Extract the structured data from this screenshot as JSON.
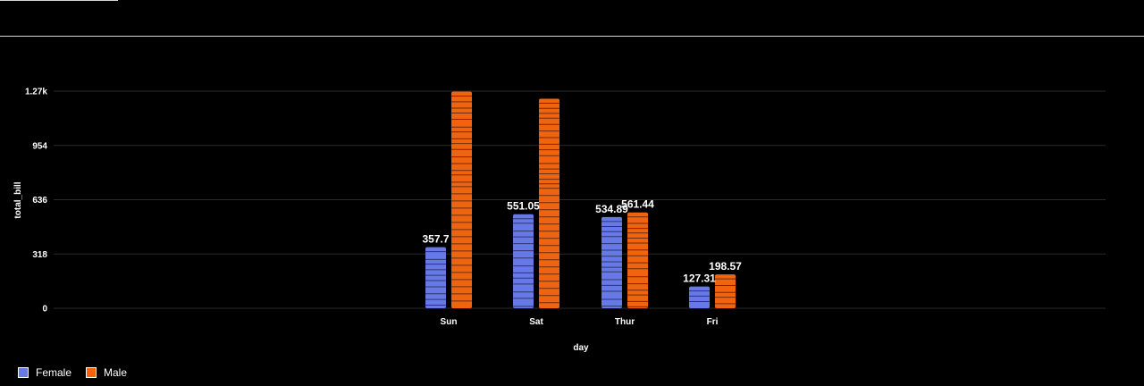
{
  "chart_data": {
    "type": "bar",
    "xlabel": "day",
    "ylabel": "total_bill",
    "categories": [
      "Sun",
      "Sat",
      "Thur",
      "Fri"
    ],
    "ylim": [
      0,
      1400
    ],
    "y_ticks": [
      0,
      318,
      636,
      954,
      1272
    ],
    "y_tick_labels": [
      "0",
      "318",
      "636",
      "954",
      "1.27k"
    ],
    "grid": true,
    "legend_position": "bottom-left",
    "series": [
      {
        "name": "Female",
        "color": "#6779e6",
        "values": [
          357.7,
          551.05,
          534.89,
          127.31
        ],
        "labels": [
          "357.7",
          "551.05",
          "534.89",
          "127.31"
        ]
      },
      {
        "name": "Male",
        "color": "#f0640f",
        "values": [
          1269.46,
          1227.35,
          561.44,
          198.57
        ],
        "labels": [
          "",
          "",
          "561.44",
          "198.57"
        ]
      }
    ]
  }
}
